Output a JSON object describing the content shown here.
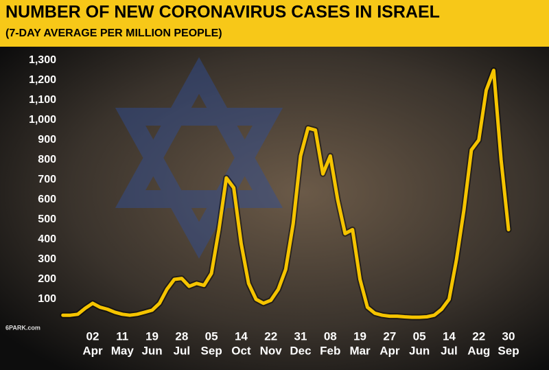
{
  "chart_data": {
    "type": "line",
    "title": "NUMBER OF NEW CORONAVIRUS CASES IN ISRAEL",
    "subtitle": "(7-DAY AVERAGE PER MILLION PEOPLE)",
    "color": "#f5c400",
    "ylim": [
      0,
      1300
    ],
    "yticks": [
      100,
      200,
      300,
      400,
      500,
      600,
      700,
      800,
      900,
      {
        "value": 1000,
        "label": "1,000"
      },
      {
        "value": 1100,
        "label": "1,100"
      },
      {
        "value": 1200,
        "label": "1,200"
      },
      {
        "value": 1300,
        "label": "1,300"
      }
    ],
    "categories": [
      null,
      null,
      null,
      null,
      [
        "02",
        "Apr"
      ],
      null,
      null,
      null,
      [
        "11",
        "May"
      ],
      null,
      null,
      null,
      [
        "19",
        "Jun"
      ],
      null,
      null,
      null,
      [
        "28",
        "Jul"
      ],
      null,
      null,
      null,
      [
        "05",
        "Sep"
      ],
      null,
      null,
      null,
      [
        "14",
        "Oct"
      ],
      null,
      null,
      null,
      [
        "22",
        "Nov"
      ],
      null,
      null,
      null,
      [
        "31",
        "Dec"
      ],
      null,
      null,
      null,
      [
        "08",
        "Feb"
      ],
      null,
      null,
      null,
      [
        "19",
        "Mar"
      ],
      null,
      null,
      null,
      [
        "27",
        "Apr"
      ],
      null,
      null,
      null,
      [
        "05",
        "Jun"
      ],
      null,
      null,
      null,
      [
        "14",
        "Jul"
      ],
      null,
      null,
      null,
      [
        "22",
        "Aug"
      ],
      null,
      null,
      null,
      [
        "30",
        "Sep"
      ]
    ],
    "values": [
      20,
      20,
      25,
      55,
      80,
      60,
      50,
      35,
      25,
      20,
      25,
      35,
      45,
      80,
      150,
      200,
      205,
      165,
      180,
      170,
      230,
      450,
      710,
      660,
      380,
      180,
      100,
      80,
      95,
      150,
      250,
      480,
      820,
      960,
      950,
      730,
      820,
      600,
      430,
      450,
      200,
      60,
      30,
      20,
      15,
      15,
      12,
      10,
      10,
      12,
      20,
      50,
      100,
      300,
      550,
      850,
      900,
      1150,
      1250,
      800,
      450
    ]
  },
  "watermark": "6PARK.com"
}
